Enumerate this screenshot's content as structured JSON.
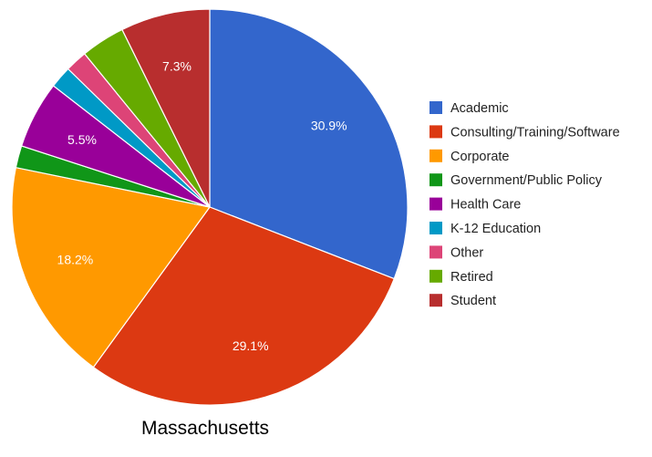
{
  "chart_data": {
    "type": "pie",
    "title": "Massachusetts",
    "legend_position": "right",
    "slices": [
      {
        "name": "Academic",
        "value": 30.9,
        "label": "30.9%",
        "color": "#3366cc"
      },
      {
        "name": "Consulting/Training/Software",
        "value": 29.1,
        "label": "29.1%",
        "color": "#dc3912"
      },
      {
        "name": "Corporate",
        "value": 18.2,
        "label": "18.2%",
        "color": "#ff9900"
      },
      {
        "name": "Government/Public Policy",
        "value": 1.8,
        "label": "",
        "color": "#109618"
      },
      {
        "name": "Health Care",
        "value": 5.5,
        "label": "5.5%",
        "color": "#990099"
      },
      {
        "name": "K-12 Education",
        "value": 1.8,
        "label": "",
        "color": "#0099c6"
      },
      {
        "name": "Other",
        "value": 1.8,
        "label": "",
        "color": "#dd4477"
      },
      {
        "name": "Retired",
        "value": 3.6,
        "label": "",
        "color": "#66aa00"
      },
      {
        "name": "Student",
        "value": 7.3,
        "label": "7.3%",
        "color": "#b82e2e"
      }
    ]
  }
}
